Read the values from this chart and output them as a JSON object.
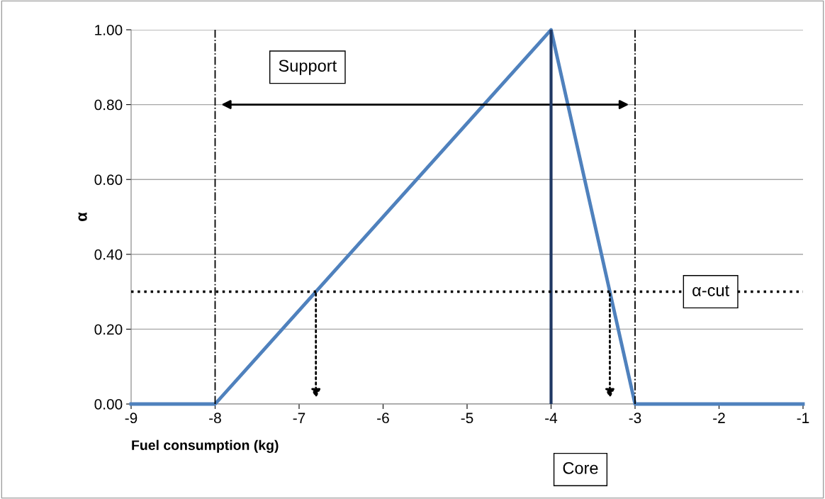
{
  "chart_data": {
    "type": "line",
    "xlabel": "Fuel consumption (kg)",
    "ylabel": "α",
    "x": [
      -9,
      -8,
      -4,
      -3,
      -1
    ],
    "series": [
      {
        "color": "#4f81bd",
        "values": [
          0,
          0,
          1,
          0,
          0
        ]
      }
    ],
    "xlim": [
      -9,
      -1
    ],
    "xticks": [
      -9,
      -8,
      -7,
      -6,
      -5,
      -4,
      -3,
      -2,
      -1
    ],
    "ylim": [
      0,
      1
    ],
    "yticks": [
      {
        "value": 0,
        "label": "0.00"
      },
      {
        "value": 0.2,
        "label": "0.20"
      },
      {
        "value": 0.4,
        "label": "0.40"
      },
      {
        "value": 0.6,
        "label": "0.60"
      },
      {
        "value": 0.8,
        "label": "0.80"
      },
      {
        "value": 1,
        "label": "1.00"
      }
    ],
    "grid": "y",
    "marker": "none",
    "line_style": "solid",
    "ref_lines": [
      {
        "axis": "x",
        "value": -8,
        "color": "#000000",
        "line_style": "dashdot"
      },
      {
        "axis": "x",
        "value": -3,
        "color": "#000000",
        "line_style": "dashdot"
      },
      {
        "axis": "x",
        "value": -4,
        "color": "#1f3864",
        "line_style": "solid"
      },
      {
        "axis": "y",
        "value": 0.3,
        "color": "#000000",
        "line_style": "dotted",
        "label": "α-cut"
      }
    ],
    "annotations": [
      "Support",
      "Core"
    ]
  }
}
